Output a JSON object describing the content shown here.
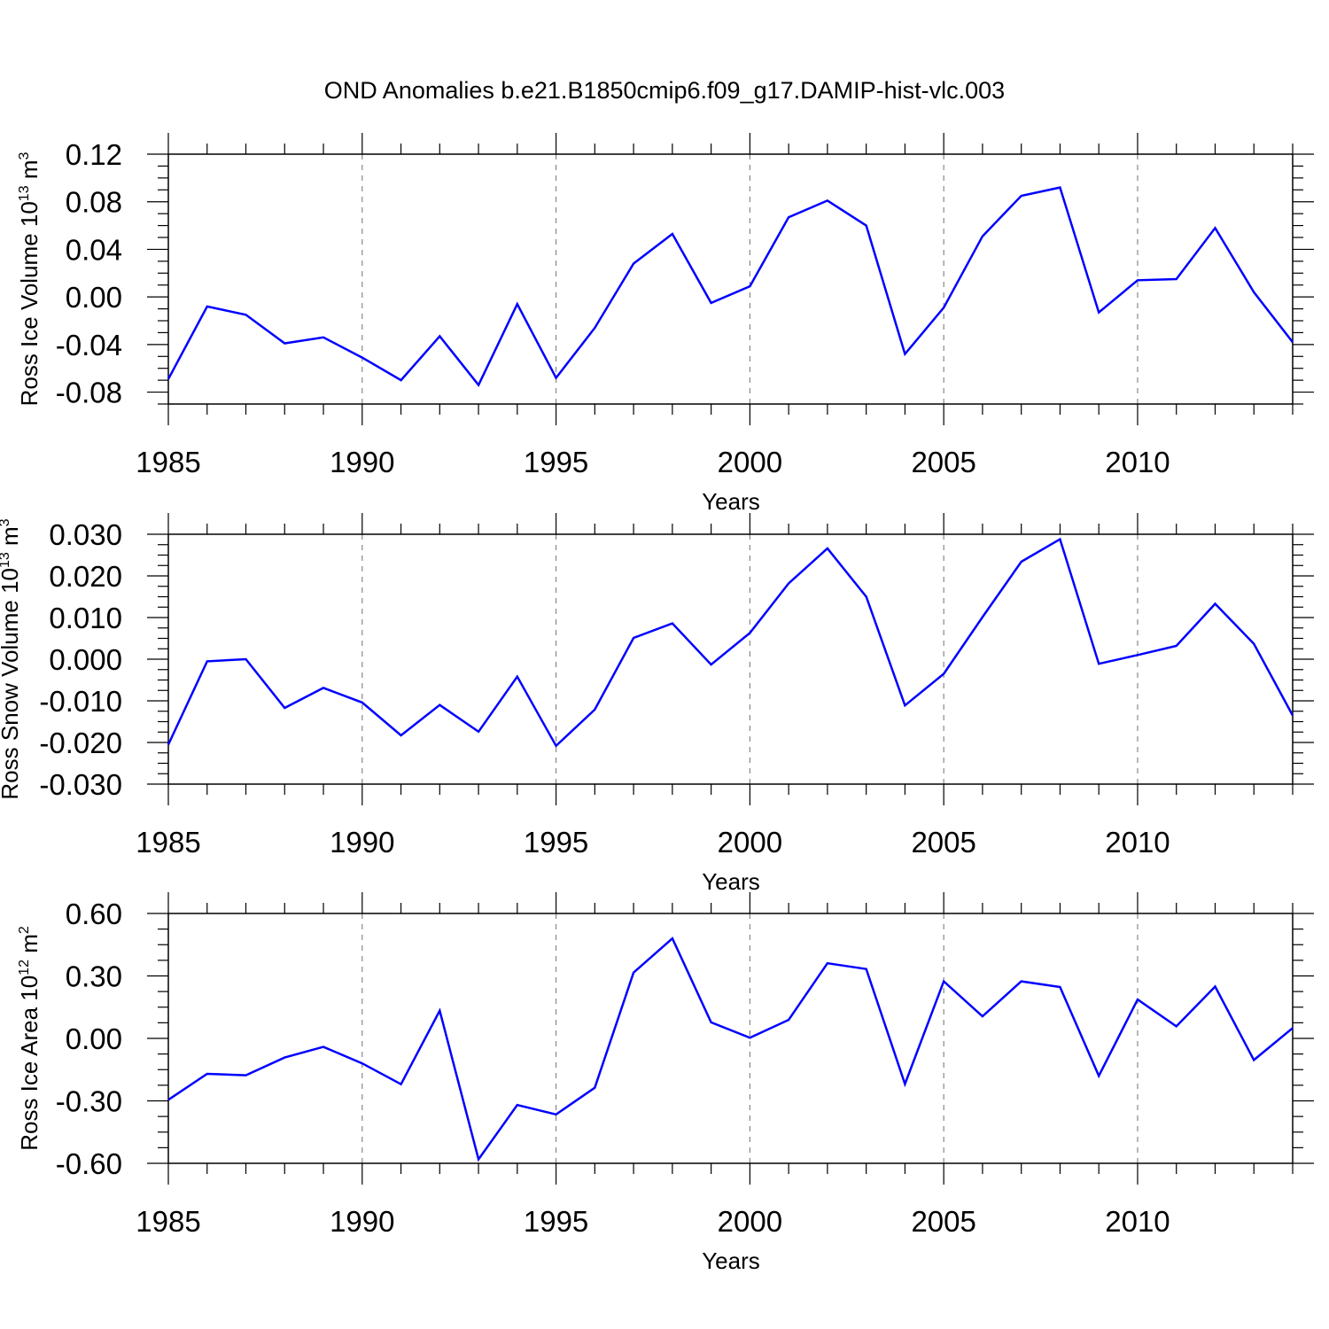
{
  "title": "OND Anomalies b.e21.B1850cmip6.f09_g17.DAMIP-hist-vlc.003",
  "line_color": "#0000ff",
  "chart_data": [
    {
      "type": "line",
      "ylabel_main": "Ross Ice Volume 10",
      "ylabel_exp": "13",
      "ylabel_unit": "m",
      "ylabel_unit_exp": "3",
      "xlabel": "Years",
      "xlim": [
        1985,
        2014
      ],
      "ylim": [
        -0.09,
        0.12
      ],
      "xticks": [
        "1985",
        "1990",
        "1995",
        "2000",
        "2005",
        "2010"
      ],
      "yticks": [
        "0.12",
        "0.08",
        "0.04",
        "0.00",
        "-0.04",
        "-0.08"
      ],
      "x": [
        1985,
        1986,
        1987,
        1988,
        1989,
        1990,
        1991,
        1992,
        1993,
        1994,
        1995,
        1996,
        1997,
        1998,
        1999,
        2000,
        2001,
        2002,
        2003,
        2004,
        2005,
        2006,
        2007,
        2008,
        2009,
        2010,
        2011,
        2012,
        2013,
        2014
      ],
      "y": [
        -0.069,
        -0.008,
        -0.015,
        -0.039,
        -0.034,
        -0.051,
        -0.07,
        -0.033,
        -0.074,
        -0.006,
        -0.068,
        -0.026,
        0.028,
        0.053,
        -0.005,
        0.009,
        0.067,
        0.081,
        0.06,
        -0.048,
        -0.009,
        0.051,
        0.085,
        0.092,
        -0.013,
        0.014,
        0.015,
        0.058,
        0.004,
        -0.038
      ]
    },
    {
      "type": "line",
      "ylabel_main": "Ross Snow Volume 10",
      "ylabel_exp": "13",
      "ylabel_unit": "m",
      "ylabel_unit_exp": "3",
      "xlabel": "Years",
      "xlim": [
        1985,
        2014
      ],
      "ylim": [
        -0.03,
        0.03
      ],
      "xticks": [
        "1985",
        "1990",
        "1995",
        "2000",
        "2005",
        "2010"
      ],
      "yticks": [
        "0.030",
        "0.020",
        "0.010",
        "0.000",
        "-0.010",
        "-0.020",
        "-0.030"
      ],
      "x": [
        1985,
        1986,
        1987,
        1988,
        1989,
        1990,
        1991,
        1992,
        1993,
        1994,
        1995,
        1996,
        1997,
        1998,
        1999,
        2000,
        2001,
        2002,
        2003,
        2004,
        2005,
        2006,
        2007,
        2008,
        2009,
        2010,
        2011,
        2012,
        2013,
        2014
      ],
      "y": [
        -0.0205,
        -0.0005,
        0.0,
        -0.0117,
        -0.0069,
        -0.0104,
        -0.0183,
        -0.011,
        -0.0174,
        -0.0042,
        -0.0208,
        -0.0121,
        0.0051,
        0.0086,
        -0.0013,
        0.0063,
        0.0182,
        0.0266,
        0.015,
        -0.0111,
        -0.0035,
        0.0101,
        0.0234,
        0.0288,
        -0.0011,
        0.001,
        0.0032,
        0.0133,
        0.0037,
        -0.0135
      ]
    },
    {
      "type": "line",
      "ylabel_main": "Ross Ice Area 10",
      "ylabel_exp": "12",
      "ylabel_unit": "m",
      "ylabel_unit_exp": "2",
      "xlabel": "Years",
      "xlim": [
        1985,
        2014
      ],
      "ylim": [
        -0.6,
        0.6
      ],
      "xticks": [
        "1985",
        "1990",
        "1995",
        "2000",
        "2005",
        "2010"
      ],
      "yticks": [
        "0.60",
        "0.30",
        "0.00",
        "-0.30",
        "-0.60"
      ],
      "x": [
        1985,
        1986,
        1987,
        1988,
        1989,
        1990,
        1991,
        1992,
        1993,
        1994,
        1995,
        1996,
        1997,
        1998,
        1999,
        2000,
        2001,
        2002,
        2003,
        2004,
        2005,
        2006,
        2007,
        2008,
        2009,
        2010,
        2011,
        2012,
        2013,
        2014
      ],
      "y": [
        -0.295,
        -0.17,
        -0.177,
        -0.092,
        -0.041,
        -0.12,
        -0.22,
        0.133,
        -0.581,
        -0.32,
        -0.365,
        -0.237,
        0.316,
        0.48,
        0.077,
        0.003,
        0.089,
        0.361,
        0.333,
        -0.219,
        0.274,
        0.106,
        0.274,
        0.247,
        -0.18,
        0.187,
        0.058,
        0.249,
        -0.104,
        0.05
      ]
    }
  ]
}
